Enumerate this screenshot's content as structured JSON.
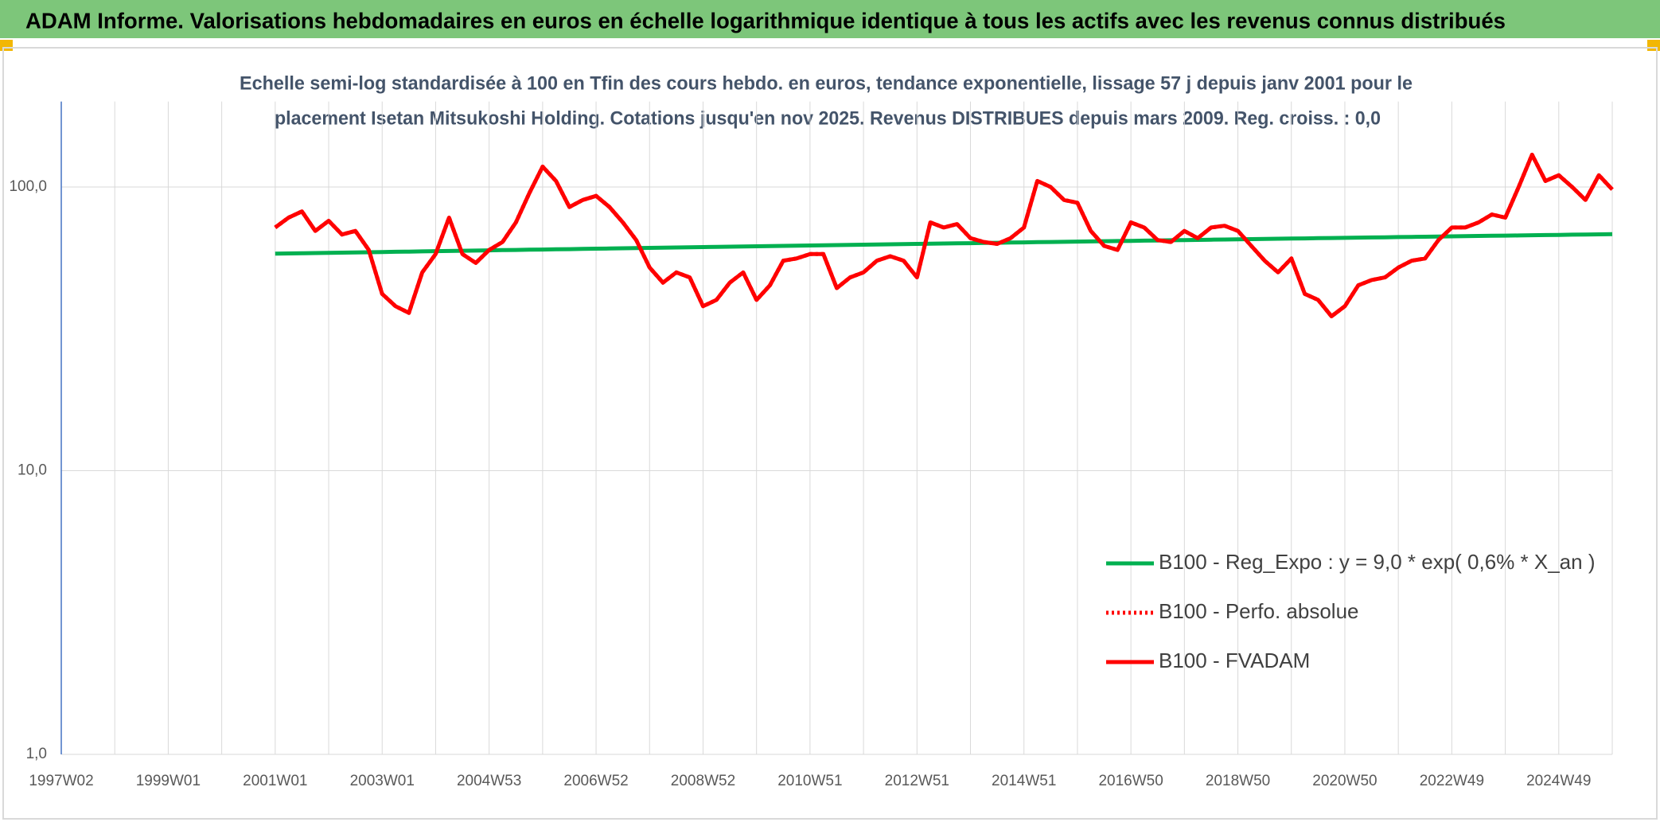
{
  "header": {
    "title": "ADAM Informe. Valorisations hebdomadaires en euros en échelle logarithmique identique à tous les actifs avec les revenus connus distribués"
  },
  "chart_data": {
    "type": "line",
    "subtitle": [
      "Echelle semi-log standardisée à 100 en Tfin des cours hebdo. en euros, tendance exponentielle, lissage 57 j depuis janv 2001 pour le",
      "placement Isetan Mitsukoshi Holding. Cotations jusqu'en nov 2025. Revenus DISTRIBUES depuis mars 2009. Reg. croiss. : 0,0"
    ],
    "categories": [
      "1997W02",
      null,
      null,
      null,
      null,
      null,
      null,
      null,
      "1999W01",
      null,
      null,
      null,
      null,
      null,
      null,
      null,
      "2001W01",
      null,
      null,
      null,
      null,
      null,
      null,
      null,
      "2003W01",
      null,
      null,
      null,
      null,
      null,
      null,
      null,
      "2004W53",
      null,
      null,
      null,
      null,
      null,
      null,
      null,
      "2006W52",
      null,
      null,
      null,
      null,
      null,
      null,
      null,
      "2008W52",
      null,
      null,
      null,
      null,
      null,
      null,
      null,
      "2010W51",
      null,
      null,
      null,
      null,
      null,
      null,
      null,
      "2012W51",
      null,
      null,
      null,
      null,
      null,
      null,
      null,
      "2014W51",
      null,
      null,
      null,
      null,
      null,
      null,
      null,
      "2016W50",
      null,
      null,
      null,
      null,
      null,
      null,
      null,
      "2018W50",
      null,
      null,
      null,
      null,
      null,
      null,
      null,
      "2020W50",
      null,
      null,
      null,
      null,
      null,
      null,
      null,
      "2022W49",
      null,
      null,
      null,
      null,
      null,
      null,
      null,
      "2024W49",
      null,
      null,
      null,
      null
    ],
    "series": [
      {
        "name": "B100 - Reg_Expo : y = 9,0 * exp( 0,6% *  X_an )",
        "color": "#00b050",
        "style": "solid",
        "values": [
          null,
          null,
          null,
          null,
          null,
          null,
          null,
          null,
          null,
          null,
          null,
          null,
          null,
          null,
          null,
          null,
          58.2,
          58.3,
          58.4,
          58.5,
          58.6,
          58.7,
          58.8,
          58.9,
          59.0,
          59.1,
          59.2,
          59.3,
          59.4,
          59.5,
          59.6,
          59.7,
          59.8,
          59.9,
          60.0,
          60.1,
          60.2,
          60.3,
          60.4,
          60.5,
          60.6,
          60.7,
          60.8,
          60.9,
          61.0,
          61.1,
          61.2,
          61.3,
          61.4,
          61.5,
          61.6,
          61.7,
          61.8,
          61.9,
          62.0,
          62.1,
          62.2,
          62.3,
          62.4,
          62.5,
          62.6,
          62.7,
          62.8,
          62.9,
          63.0,
          63.1,
          63.2,
          63.3,
          63.4,
          63.5,
          63.6,
          63.7,
          63.8,
          63.9,
          64.0,
          64.1,
          64.2,
          64.3,
          64.4,
          64.5,
          64.6,
          64.7,
          64.8,
          64.9,
          65.0,
          65.1,
          65.2,
          65.3,
          65.4,
          65.5,
          65.6,
          65.7,
          65.8,
          65.9,
          66.0,
          66.1,
          66.2,
          66.3,
          66.4,
          66.5,
          66.6,
          66.7,
          66.8,
          66.9,
          67.0,
          67.1,
          67.2,
          67.3,
          67.4,
          67.5,
          67.6,
          67.7,
          67.8,
          67.9,
          68.0,
          68.1,
          68.2
        ]
      },
      {
        "name": "B100 - Perfo. absolue",
        "color": "#ff0000",
        "style": "dotted",
        "values": [
          null,
          null,
          null,
          null,
          null,
          null,
          null,
          null,
          null,
          null,
          null,
          null,
          null,
          null,
          null,
          null,
          72,
          78,
          82,
          70,
          76,
          68,
          70,
          60,
          42,
          38,
          36,
          50,
          58,
          78,
          58,
          54,
          60,
          64,
          75,
          95,
          118,
          105,
          85,
          90,
          93,
          85,
          75,
          65,
          52,
          46,
          50,
          48,
          38,
          40,
          46,
          50,
          40,
          45,
          55,
          56,
          58,
          58,
          44,
          48,
          50,
          55,
          57,
          55,
          48,
          75,
          72,
          74,
          66,
          64,
          63,
          66,
          72,
          105,
          100,
          90,
          88,
          70,
          62,
          60,
          75,
          72,
          65,
          64,
          70,
          66,
          72,
          73,
          70,
          62,
          55,
          50,
          56,
          42,
          40,
          35,
          38,
          45,
          47,
          48,
          52,
          55,
          56,
          65,
          72,
          72,
          75,
          80,
          78,
          100,
          130,
          105,
          110,
          100,
          90,
          110,
          98
        ]
      },
      {
        "name": "B100 - FVADAM",
        "color": "#ff0000",
        "style": "solid",
        "values": [
          null,
          null,
          null,
          null,
          null,
          null,
          null,
          null,
          null,
          null,
          null,
          null,
          null,
          null,
          null,
          null,
          72,
          78,
          82,
          70,
          76,
          68,
          70,
          60,
          42,
          38,
          36,
          50,
          58,
          78,
          58,
          54,
          60,
          64,
          75,
          95,
          118,
          105,
          85,
          90,
          93,
          85,
          75,
          65,
          52,
          46,
          50,
          48,
          38,
          40,
          46,
          50,
          40,
          45,
          55,
          56,
          58,
          58,
          44,
          48,
          50,
          55,
          57,
          55,
          48,
          75,
          72,
          74,
          66,
          64,
          63,
          66,
          72,
          105,
          100,
          90,
          88,
          70,
          62,
          60,
          75,
          72,
          65,
          64,
          70,
          66,
          72,
          73,
          70,
          62,
          55,
          50,
          56,
          42,
          40,
          35,
          38,
          45,
          47,
          48,
          52,
          55,
          56,
          65,
          72,
          72,
          75,
          80,
          78,
          100,
          130,
          105,
          110,
          100,
          90,
          110,
          98
        ]
      }
    ],
    "ylim": [
      1,
      200
    ],
    "log_scale": true,
    "yticks": [
      {
        "value": 1,
        "label": "1,0"
      },
      {
        "value": 10,
        "label": "10,0"
      },
      {
        "value": 100,
        "label": "100,0"
      }
    ],
    "grid": true,
    "legend": "lower right"
  }
}
